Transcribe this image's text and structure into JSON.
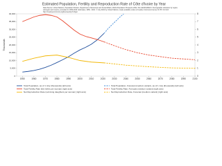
{
  "chart_data": {
    "type": "line",
    "title": "Estimated Population, Fertility and Reproduction Rate of Côte d'Ivoire by Year",
    "subtitle": "Data Source: United Nations, Population Division, Department of Economic and Social Affairs, World Population Prospects 2022, File GEN/01/REV1: Demographic indicators by region, subregion and country, annually for 1950-2100. Estimates, 1950 - 2021. © July 2022 by United Nations, made available under a Creative Commons license CC BY 3.0 IGO: http://creativecommons.org/licenses/by/3.0/igo/",
    "ylabel": "Thousands",
    "xlim": [
      1945,
      2100
    ],
    "xticks": [
      1950,
      1960,
      1970,
      1980,
      1990,
      2000,
      2010,
      2020,
      2030,
      2040,
      2050,
      2060,
      2070,
      2080,
      2090,
      2100
    ],
    "ylim": [
      0,
      40000
    ],
    "yticks": [
      0,
      {
        "value": 5000,
        "label": "5,000"
      },
      {
        "value": 10000,
        "label": "10,000"
      },
      {
        "value": 15000,
        "label": "15,000"
      },
      {
        "value": 20000,
        "label": "20,000"
      },
      {
        "value": 25000,
        "label": "25,000"
      },
      {
        "value": 30000,
        "label": "30,000"
      },
      {
        "value": 35000,
        "label": "35,000"
      },
      {
        "value": 40000,
        "label": "40,000"
      }
    ],
    "y2lim": [
      0,
      8
    ],
    "y2ticks": [
      0,
      1,
      2,
      3,
      4,
      5,
      6,
      7,
      8
    ],
    "legend": "bottom",
    "series": [
      {
        "name": "Total Population, as of 1 July (thousands) (left axis)",
        "color": "#1f4e9c",
        "dashed": false,
        "x": [
          1950,
          1955,
          1960,
          1965,
          1970,
          1975,
          1980,
          1985,
          1990,
          1995,
          2000,
          2005,
          2010,
          2015,
          2021
        ],
        "values": [
          2600,
          3000,
          3600,
          4400,
          5600,
          7000,
          8700,
          10500,
          12400,
          14700,
          16800,
          18500,
          20500,
          23200,
          27480
        ]
      },
      {
        "name": "Total Population, Forecast (medium variant), as of 1 July (thousands) (left axis)",
        "color": "#4a90d9",
        "dashed": true,
        "x": [
          2021,
          2025,
          2030,
          2035,
          2038
        ],
        "values": [
          27480,
          30900,
          34500,
          38100,
          39900
        ]
      },
      {
        "name": "Total Fertility Rate (live births per woman) (right axis)",
        "color": "#e8452c",
        "dashed": false,
        "axis": "y2",
        "x": [
          1950,
          1955,
          1960,
          1965,
          1970,
          1975,
          1980,
          1985,
          1990,
          1995,
          2000,
          2005,
          2010,
          2015,
          2021
        ],
        "values": [
          7.0,
          7.3,
          7.6,
          7.8,
          7.9,
          7.8,
          7.6,
          7.1,
          6.5,
          5.9,
          5.4,
          5.1,
          4.9,
          4.7,
          4.4
        ]
      },
      {
        "name": "Total Fertility Rate, Forecast (medium variant) (right axis)",
        "color": "#e8452c",
        "dashed": true,
        "axis": "y2",
        "x": [
          2021,
          2030,
          2040,
          2050,
          2060,
          2070,
          2080,
          2090,
          2100
        ],
        "values": [
          4.4,
          3.9,
          3.4,
          3.0,
          2.7,
          2.5,
          2.3,
          2.2,
          2.1
        ]
      },
      {
        "name": "Net Reproduction Rate (surviving daughters per woman) (right axis)",
        "color": "#f2b705",
        "dashed": false,
        "axis": "y2",
        "x": [
          1950,
          1960,
          1970,
          1980,
          1990,
          2000,
          2010,
          2021
        ],
        "values": [
          1.9,
          2.3,
          2.6,
          2.7,
          2.4,
          2.0,
          1.8,
          1.7
        ]
      },
      {
        "name": "Net Reproduction Rate, Forecast (medium variant) (right axis)",
        "color": "#f2b705",
        "dashed": true,
        "axis": "y2",
        "x": [
          2021,
          2040,
          2060,
          2080,
          2100
        ],
        "values": [
          1.7,
          1.4,
          1.2,
          1.05,
          1.0
        ]
      }
    ]
  }
}
